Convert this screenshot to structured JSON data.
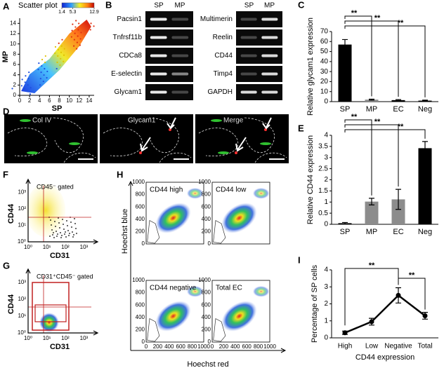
{
  "chart_data": [
    {
      "type": "scatter",
      "title": "Scatter plot",
      "xlabel": "SP",
      "ylabel": "MP",
      "xlim": [
        0,
        15
      ],
      "ylim": [
        0,
        15
      ],
      "xticks": [
        0,
        2,
        4,
        6,
        8,
        10,
        12,
        14
      ],
      "yticks": [
        0,
        2,
        4,
        6,
        8,
        10,
        12,
        14
      ],
      "colorbar_ticks": [
        1.4,
        5.3,
        12.9
      ]
    },
    {
      "type": "bar",
      "ylabel": "Relative glycam1 expression",
      "categories": [
        "SP",
        "MP",
        "EC",
        "Neg"
      ],
      "values": [
        57,
        2,
        1.5,
        1
      ],
      "errors": [
        5,
        0.5,
        0.5,
        0.5
      ],
      "colors": [
        "#000000",
        "#8c8c8c",
        "#000000",
        "#000000"
      ],
      "ylim": [
        0,
        70
      ],
      "yticks": [
        0,
        10,
        20,
        30,
        40,
        50,
        60,
        70
      ],
      "significance": [
        "**",
        "**",
        "**"
      ]
    },
    {
      "type": "bar",
      "ylabel": "Relative CD44 expression",
      "categories": [
        "SP",
        "MP",
        "EC",
        "Neg"
      ],
      "values": [
        0.05,
        1.02,
        1.12,
        3.42
      ],
      "errors": [
        0.03,
        0.15,
        0.45,
        0.3
      ],
      "colors": [
        "#000000",
        "#8c8c8c",
        "#8c8c8c",
        "#000000"
      ],
      "ylim": [
        0,
        4
      ],
      "yticks": [
        0,
        0.5,
        1,
        1.5,
        2,
        2.5,
        3,
        3.5,
        4
      ],
      "significance": [
        "**",
        "**",
        "**"
      ]
    },
    {
      "type": "line",
      "xlabel": "CD44 expression",
      "ylabel": "Percentage of SP cells",
      "categories": [
        "High",
        "Low",
        "Negative",
        "Total"
      ],
      "values": [
        0.3,
        0.95,
        2.5,
        1.3
      ],
      "errors": [
        0.1,
        0.2,
        0.45,
        0.2
      ],
      "color": "#000000",
      "ylim": [
        0,
        4
      ],
      "yticks": [
        0,
        1,
        2,
        3,
        4
      ],
      "significance": [
        "**",
        "**"
      ]
    }
  ],
  "figure": {
    "panel_labels": [
      "A",
      "B",
      "C",
      "D",
      "E",
      "F",
      "G",
      "H",
      "I"
    ],
    "gel": {
      "header": [
        "SP",
        "MP"
      ],
      "left_rows": [
        "Pacsin1",
        "Tnfrsf11b",
        "CDCa8",
        "E-selectin",
        "Glycam1"
      ],
      "right_rows": [
        "Multimerin",
        "Reelin",
        "CD44",
        "Timp4",
        "GAPDH"
      ]
    },
    "microscopy": [
      "Col IV",
      "Glycam1",
      "Merge"
    ],
    "flow_f": {
      "gate": "CD45⁻ gated",
      "xlabel": "CD31",
      "ylabel": "CD44",
      "ticks": [
        "10⁰",
        "10¹",
        "10²",
        "10³"
      ]
    },
    "flow_g": {
      "gate": "CD31⁺CD45⁻ gated",
      "xlabel": "CD31",
      "ylabel": "CD44",
      "ticks": [
        "10⁰",
        "10¹",
        "10²",
        "10³"
      ]
    },
    "hoechst": {
      "xlabel": "Hoechst red",
      "ylabel": "Hoechst blue",
      "ticks": [
        0,
        200,
        400,
        600,
        800,
        1000
      ],
      "plots": [
        "CD44 high",
        "CD44 low",
        "CD44 negative",
        "Total EC"
      ]
    }
  }
}
